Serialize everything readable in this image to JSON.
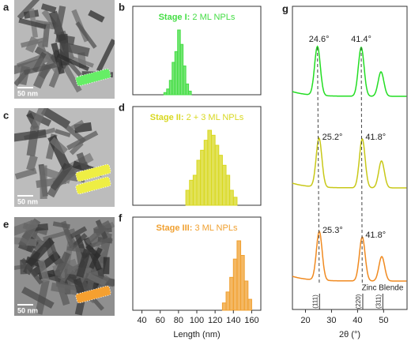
{
  "tem": [
    {
      "label": "a",
      "scale_bar": "50 nm"
    },
    {
      "label": "c",
      "scale_bar": "50 nm"
    },
    {
      "label": "e",
      "scale_bar": "50 nm"
    }
  ],
  "histograms": {
    "type": "histogram",
    "xlabel": "Length (nm)",
    "xlim": [
      30,
      170
    ],
    "xticks": [
      40,
      60,
      80,
      100,
      120,
      140,
      160
    ],
    "panels": [
      {
        "label": "b",
        "stage": "Stage I:",
        "title": "2 ML NPLs",
        "color": "#44dd44",
        "bins": [
          64,
          67,
          70,
          73,
          76,
          79,
          82,
          85,
          88,
          91,
          94
        ],
        "counts": [
          3,
          8,
          20,
          45,
          60,
          90,
          70,
          40,
          15,
          5
        ]
      },
      {
        "label": "d",
        "stage": "Stage II:",
        "title": "2 + 3 ML NPLs",
        "color": "#d8d820",
        "bins": [
          88,
          92,
          96,
          100,
          104,
          108,
          112,
          116,
          120,
          124,
          128,
          132,
          136,
          140,
          144
        ],
        "counts": [
          15,
          25,
          30,
          45,
          55,
          65,
          75,
          70,
          60,
          50,
          40,
          30,
          15,
          8
        ]
      },
      {
        "label": "f",
        "stage": "Stage III:",
        "title": "3 ML NPLs",
        "color": "#f0a030",
        "bins": [
          128,
          132,
          136,
          140,
          144,
          148,
          152,
          156,
          160
        ],
        "counts": [
          10,
          25,
          45,
          70,
          95,
          75,
          40,
          15
        ]
      }
    ]
  },
  "xrd": {
    "type": "line",
    "label": "g",
    "xlabel": "2θ (°)",
    "xlim": [
      15,
      59
    ],
    "xticks": [
      20,
      30,
      40,
      50
    ],
    "reference": {
      "name": "Zinc Blende",
      "peaks": [
        25.4,
        42.0,
        49.7
      ],
      "labels": [
        "(111)",
        "(220)",
        "(311)"
      ]
    },
    "series": [
      {
        "color": "#22dd22",
        "peaks": [
          24.6,
          41.4,
          49.0
        ],
        "peak_labels": [
          "24.6°",
          "41.4°",
          null
        ],
        "heights": [
          1,
          1,
          0.5
        ],
        "width": 1.1
      },
      {
        "color": "#c8c818",
        "peaks": [
          25.2,
          41.8,
          49.2
        ],
        "peak_labels": [
          "25.2°",
          "41.8°",
          null
        ],
        "heights": [
          1,
          1,
          0.55
        ],
        "width": 1.1
      },
      {
        "color": "#f08a20",
        "peaks": [
          25.3,
          41.8,
          49.3
        ],
        "peak_labels": [
          "25.3°",
          "41.8°",
          null
        ],
        "heights": [
          1,
          0.9,
          0.5
        ],
        "width": 1.1
      }
    ]
  }
}
